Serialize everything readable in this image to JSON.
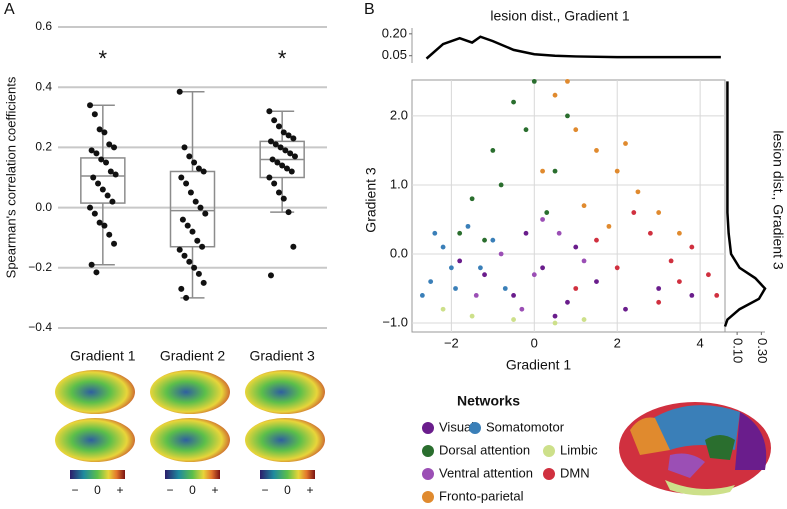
{
  "chart_data": [
    {
      "type": "box",
      "panel_label": "A",
      "ylabel": "Spearman's correlation coefficients",
      "categories": [
        "Gradient 1",
        "Gradient 2",
        "Gradient 3"
      ],
      "annotations": [
        "*",
        null,
        "*"
      ],
      "ylim": [
        -0.4,
        0.6
      ],
      "yticks": [
        {
          "value": -0.4,
          "label": "−0.4"
        },
        {
          "value": -0.2,
          "label": "−0.2"
        },
        {
          "value": 0,
          "label": "0.0"
        },
        0.2,
        0.4,
        0.6
      ],
      "grid": true,
      "box_color": "#8c8c8c",
      "point_color": "#111111",
      "stats": [
        {
          "whislo": -0.19,
          "q1": 0.015,
          "med": 0.105,
          "q3": 0.165,
          "whishi": 0.34
        },
        {
          "whislo": -0.3,
          "q1": -0.13,
          "med": -0.01,
          "q3": 0.12,
          "whishi": 0.385
        },
        {
          "whislo": -0.015,
          "q1": 0.1,
          "med": 0.16,
          "q3": 0.22,
          "whishi": 0.32
        }
      ],
      "points": [
        [
          0.34,
          0.31,
          0.26,
          0.25,
          0.21,
          0.2,
          0.19,
          0.18,
          0.16,
          0.15,
          0.12,
          0.11,
          0.1,
          0.08,
          0.06,
          0.04,
          0.02,
          0.0,
          -0.02,
          -0.05,
          -0.06,
          -0.09,
          -0.12,
          -0.19,
          -0.215
        ],
        [
          0.385,
          0.2,
          0.17,
          0.15,
          0.13,
          0.12,
          0.1,
          0.08,
          0.05,
          0.02,
          0.0,
          -0.02,
          -0.04,
          -0.06,
          -0.08,
          -0.11,
          -0.13,
          -0.14,
          -0.16,
          -0.18,
          -0.2,
          -0.22,
          -0.25,
          -0.27,
          -0.3
        ],
        [
          0.32,
          0.29,
          0.27,
          0.25,
          0.24,
          0.23,
          0.22,
          0.21,
          0.2,
          0.19,
          0.18,
          0.17,
          0.16,
          0.15,
          0.14,
          0.13,
          0.12,
          0.1,
          0.08,
          0.05,
          0.03,
          -0.015,
          -0.13,
          -0.225
        ]
      ],
      "colorbar_ticks": [
        "−",
        "0",
        "+"
      ]
    },
    {
      "type": "scatter",
      "panel_label": "B",
      "xlabel": "Gradient 1",
      "ylabel": "Gradient 3",
      "legend_title": "Networks",
      "xlim": [
        -2.95,
        4.6
      ],
      "ylim": [
        -1.13,
        2.52
      ],
      "xticks": [
        {
          "value": -2,
          "label": "−2"
        },
        0,
        2,
        4
      ],
      "yticks": [
        {
          "value": -1,
          "label": "−1.0"
        },
        {
          "value": 0,
          "label": "0.0"
        },
        {
          "value": 1,
          "label": "1.0"
        },
        {
          "value": 2,
          "label": "2.0"
        }
      ],
      "grid": true,
      "series": [
        {
          "name": "Visual",
          "color": "#6a1d8c",
          "x": [
            -1.2,
            -0.5,
            0.2,
            0.8,
            1.5,
            2.2,
            3.0,
            -0.2,
            1.0,
            3.8,
            -1.8,
            0.5
          ],
          "values": [
            -0.3,
            -0.6,
            -0.2,
            -0.7,
            -0.4,
            -0.8,
            -0.5,
            0.3,
            0.1,
            -0.6,
            -0.1,
            -0.9
          ]
        },
        {
          "name": "Somatomotor",
          "color": "#3a7fb8",
          "x": [
            -2.5,
            -2.2,
            -1.9,
            -1.6,
            -1.3,
            -2.7,
            -1.0,
            -2.0,
            -0.7,
            -2.4
          ],
          "values": [
            -0.4,
            0.1,
            -0.5,
            0.4,
            -0.2,
            -0.6,
            0.2,
            -0.2,
            -0.5,
            0.3
          ]
        },
        {
          "name": "Dorsal attention",
          "color": "#2a6e2e",
          "x": [
            -1.5,
            -1.0,
            -0.5,
            0,
            -0.8,
            -0.2,
            0.5,
            -1.8,
            0.3,
            -1.2,
            0.8
          ],
          "values": [
            0.8,
            1.5,
            2.2,
            2.5,
            1.0,
            1.8,
            1.2,
            0.3,
            0.6,
            0.2,
            2.0
          ]
        },
        {
          "name": "Limbic",
          "color": "#cde08a",
          "x": [
            -1.5,
            -0.5,
            0.5,
            -2.2,
            1.2
          ],
          "values": [
            -0.9,
            -0.95,
            -1.0,
            -0.8,
            -0.95
          ]
        },
        {
          "name": "Ventral attention",
          "color": "#9b4fb5",
          "x": [
            -0.8,
            0,
            0.6,
            -1.4,
            1.2,
            0.2,
            -0.3
          ],
          "values": [
            0.0,
            -0.3,
            0.3,
            -0.6,
            -0.1,
            0.5,
            -0.8
          ]
        },
        {
          "name": "DMN",
          "color": "#d0303f",
          "x": [
            2,
            2.8,
            3.5,
            4.2,
            3,
            1.5,
            4.4,
            2.4,
            3.8,
            1.0,
            3.3
          ],
          "values": [
            -0.2,
            0.3,
            -0.4,
            -0.3,
            -0.7,
            0.2,
            -0.6,
            0.6,
            0.1,
            -0.5,
            -0.1
          ]
        },
        {
          "name": "Fronto-parietal",
          "color": "#e08a2e",
          "x": [
            0.5,
            1,
            1.5,
            2,
            2.5,
            3,
            0.2,
            1.2,
            0.8,
            1.8,
            3.5,
            2.2
          ],
          "values": [
            2.3,
            1.8,
            1.5,
            1.2,
            0.9,
            0.6,
            1.2,
            0.7,
            2.5,
            0.4,
            0.3,
            1.6
          ]
        }
      ]
    },
    {
      "type": "density",
      "orientation": "top",
      "title": "lesion dist., Gradient 1",
      "color": "#000000",
      "x": [
        -2.6,
        -2.2,
        -1.8,
        -1.5,
        -1.3,
        -1.0,
        -0.5,
        0,
        0.5,
        1,
        2,
        3,
        4,
        4.5
      ],
      "values": [
        0.03,
        0.13,
        0.17,
        0.14,
        0.18,
        0.15,
        0.09,
        0.06,
        0.05,
        0.045,
        0.04,
        0.04,
        0.04,
        0.04
      ],
      "xlim": [
        -2.95,
        4.6
      ],
      "ylim": [
        0,
        0.24
      ],
      "yticks": [
        0.05,
        {
          "value": 0.2,
          "label": "0.20"
        }
      ]
    },
    {
      "type": "density",
      "orientation": "right",
      "title": "lesion dist., Gradient 3",
      "color": "#000000",
      "y": [
        -1.05,
        -0.95,
        -0.8,
        -0.65,
        -0.5,
        -0.35,
        -0.2,
        0,
        0.3,
        0.6,
        1.0,
        1.5,
        2.0,
        2.5
      ],
      "values": [
        0.0,
        0.02,
        0.12,
        0.28,
        0.33,
        0.25,
        0.12,
        0.05,
        0.03,
        0.02,
        0.02,
        0.02,
        0.02,
        0.02
      ],
      "ylim": [
        -1.13,
        2.52
      ],
      "xlim": [
        0,
        0.33
      ],
      "xticks": [
        {
          "value": 0.1,
          "label": "0.10"
        },
        {
          "value": 0.3,
          "label": "0.30"
        }
      ]
    }
  ]
}
